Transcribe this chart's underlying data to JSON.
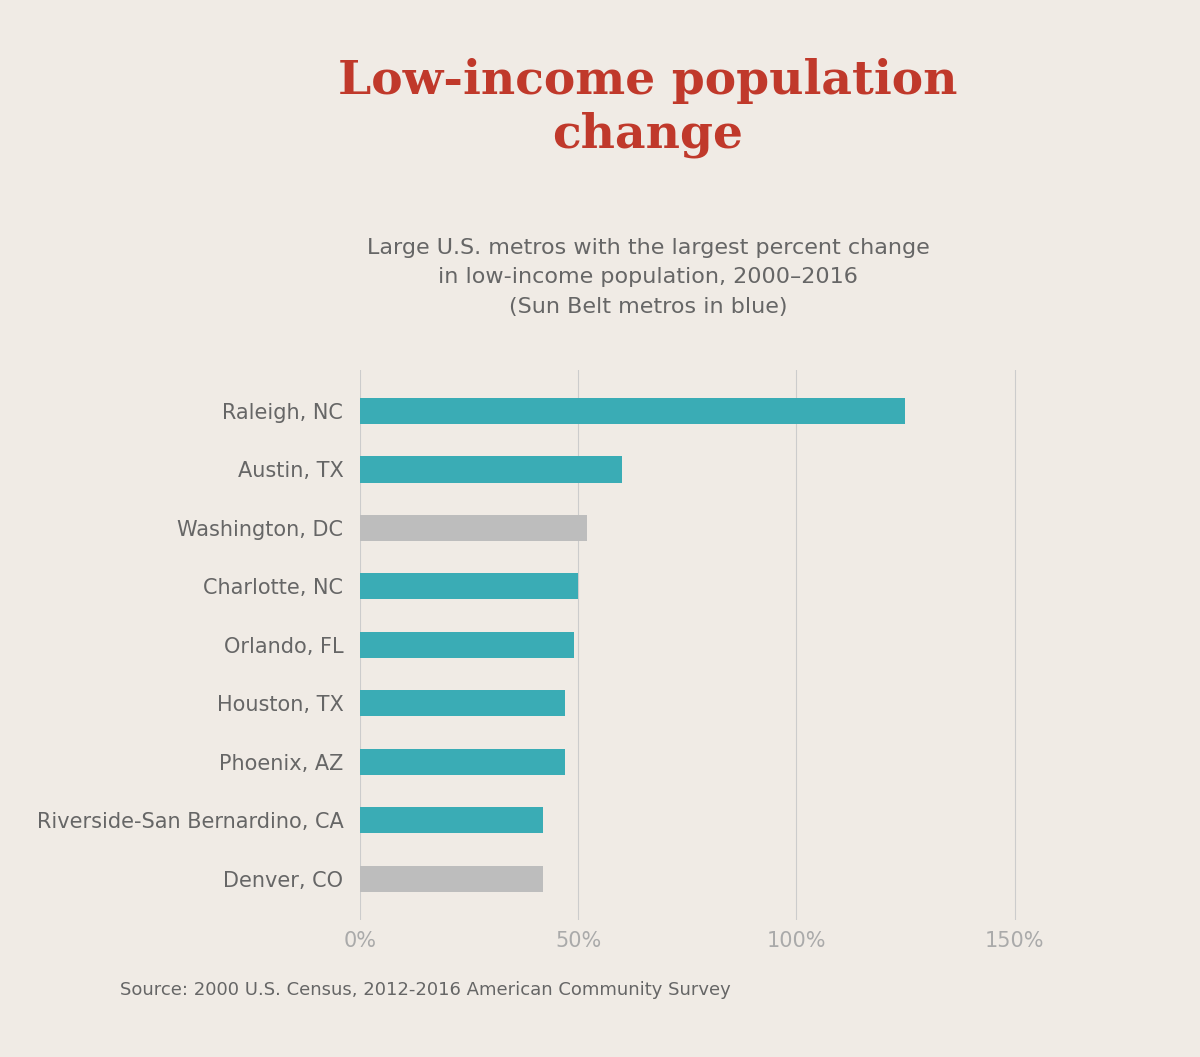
{
  "title": "Low-income population\nchange",
  "subtitle": "Large U.S. metros with the largest percent change\nin low-income population, 2000–2016\n(Sun Belt metros in blue)",
  "source": "Source: 2000 U.S. Census, 2012-2016 American Community Survey",
  "categories": [
    "Raleigh, NC",
    "Austin, TX",
    "Washington, DC",
    "Charlotte, NC",
    "Orlando, FL",
    "Houston, TX",
    "Phoenix, AZ",
    "Riverside-San Bernardino, CA",
    "Denver, CO"
  ],
  "values": [
    125,
    60,
    52,
    50,
    49,
    47,
    47,
    42,
    42
  ],
  "colors": [
    "#3aacb5",
    "#3aacb5",
    "#bdbdbd",
    "#3aacb5",
    "#3aacb5",
    "#3aacb5",
    "#3aacb5",
    "#3aacb5",
    "#bdbdbd"
  ],
  "background_color": "#f0ebe5",
  "title_color": "#c0392b",
  "subtitle_color": "#666666",
  "axis_label_color": "#aaaaaa",
  "ytick_color": "#666666",
  "bar_height": 0.45,
  "xlim": [
    0,
    165
  ],
  "xticks": [
    0,
    50,
    100,
    150
  ],
  "xticklabels": [
    "0%",
    "50%",
    "100%",
    "150%"
  ],
  "title_fontsize": 34,
  "subtitle_fontsize": 16,
  "ytick_fontsize": 15,
  "xtick_fontsize": 15,
  "source_fontsize": 13,
  "grid_color": "#cccccc"
}
